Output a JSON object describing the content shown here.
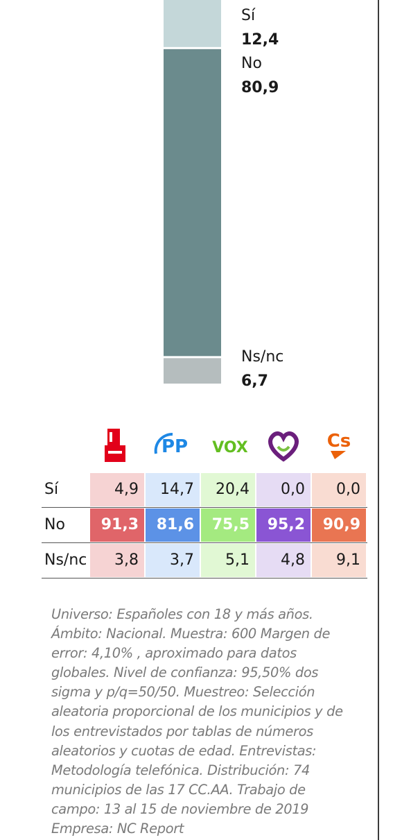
{
  "chart_data": [
    {
      "type": "stacked-bar",
      "orientation": "vertical",
      "segments": [
        {
          "label": "Sí",
          "value": 12.4,
          "value_label": "12,4",
          "color": "#c4d7d9"
        },
        {
          "label": "No",
          "value": 80.9,
          "value_label": "80,9",
          "color": "#6b8b8d"
        },
        {
          "label": "Ns/nc",
          "value": 6.7,
          "value_label": "6,7",
          "color": "#b5bdbe"
        }
      ]
    },
    {
      "type": "table",
      "columns": [
        {
          "party": "PSOE",
          "icon": "psoe-logo-icon",
          "color": "#e2001a",
          "soft": "#f6d3d3",
          "strong": "#e06569"
        },
        {
          "party": "PP",
          "icon": "pp-logo-icon",
          "color": "#1e88e5",
          "soft": "#d9e8fb",
          "strong": "#5c92e6"
        },
        {
          "party": "VOX",
          "icon": "vox-logo-icon",
          "color": "#63be21",
          "soft": "#e1f8d4",
          "strong": "#a4ea80"
        },
        {
          "party": "Podemos",
          "icon": "podemos-logo-icon",
          "color": "#6b1f7c",
          "soft": "#e6dcf4",
          "strong": "#8a55d4"
        },
        {
          "party": "Cs",
          "icon": "cs-logo-icon",
          "color": "#eb6109",
          "soft": "#f9dcd2",
          "strong": "#e97552"
        }
      ],
      "rows": [
        {
          "label": "Sí",
          "values": [
            "4,9",
            "14,7",
            "20,4",
            "0,0",
            "0,0"
          ],
          "highlight": false
        },
        {
          "label": "No",
          "values": [
            "91,3",
            "81,6",
            "75,5",
            "95,2",
            "90,9"
          ],
          "highlight": true
        },
        {
          "label": "Ns/nc",
          "values": [
            "3,8",
            "3,7",
            "5,1",
            "4,8",
            "9,1"
          ],
          "highlight": false
        }
      ],
      "logo_texts": {
        "pp": "PP",
        "vox": "VOX",
        "cs": "Cs"
      }
    }
  ],
  "methodology": "Universo: Españoles con 18 y más años. Ámbito: Nacional. Muestra: 600 Margen de error: 4,10% , aproximado para datos globales. Nivel de confianza: 95,50% dos sigma y p/q=50/50. Muestreo: Selección aleatoria proporcional de los municipios y de los entrevistados por tablas de números aleatorios y cuotas de edad. Entrevistas: Metodología telefónica. Distribución: 74 municipios de las 17 CC.AA. Trabajo de campo: 13 al 15 de noviembre de 2019 Empresa: NC Report"
}
